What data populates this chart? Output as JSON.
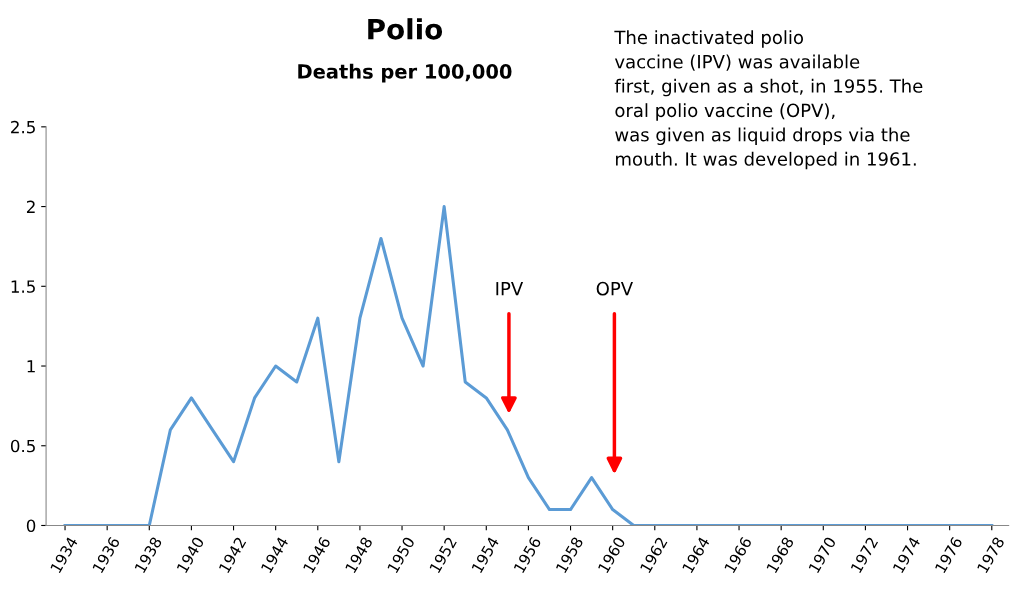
{
  "chart_data": {
    "type": "line",
    "title": "Polio",
    "subtitle": "Deaths per 100,000",
    "x": [
      1934,
      1935,
      1936,
      1937,
      1938,
      1939,
      1940,
      1941,
      1942,
      1943,
      1944,
      1945,
      1946,
      1947,
      1948,
      1949,
      1950,
      1951,
      1952,
      1953,
      1954,
      1955,
      1956,
      1957,
      1958,
      1959,
      1960,
      1961,
      1962,
      1963,
      1964,
      1965,
      1966,
      1967,
      1968,
      1969,
      1970,
      1971,
      1972,
      1973,
      1974,
      1975,
      1976,
      1977,
      1978
    ],
    "series": [
      {
        "color": "#5b9bd5",
        "values": [
          0,
          0,
          0,
          0,
          0,
          0.6,
          0.8,
          0.6,
          0.4,
          0.8,
          1.0,
          0.9,
          1.3,
          0.4,
          1.3,
          1.8,
          1.3,
          1.0,
          2.0,
          0.9,
          0.8,
          0.6,
          0.3,
          0.1,
          0.1,
          0.3,
          0.1,
          0,
          0,
          0,
          0,
          0,
          0,
          0,
          0,
          0,
          0,
          0,
          0,
          0,
          0,
          0,
          0,
          0,
          0
        ]
      }
    ],
    "xlim": [
      1933.1,
      1978.8
    ],
    "xticks": [
      1934,
      1936,
      1938,
      1940,
      1942,
      1944,
      1946,
      1948,
      1950,
      1952,
      1954,
      1956,
      1958,
      1960,
      1962,
      1964,
      1966,
      1968,
      1970,
      1972,
      1974,
      1976,
      1978
    ],
    "ylim": [
      0,
      2.5
    ],
    "yticks": [
      0,
      0.5,
      1,
      1.5,
      2,
      2.5
    ],
    "grid": false,
    "marker": "none",
    "line_style": "solid",
    "annotations": [
      "IPV",
      "OPV",
      "The inactivated polio\nvaccine (IPV) was available\nfirst, given as a shot, in 1955. The\noral polio vaccine (OPV),\nwas given as liquid drops via the\nmouth. It was developed in 1961."
    ]
  }
}
